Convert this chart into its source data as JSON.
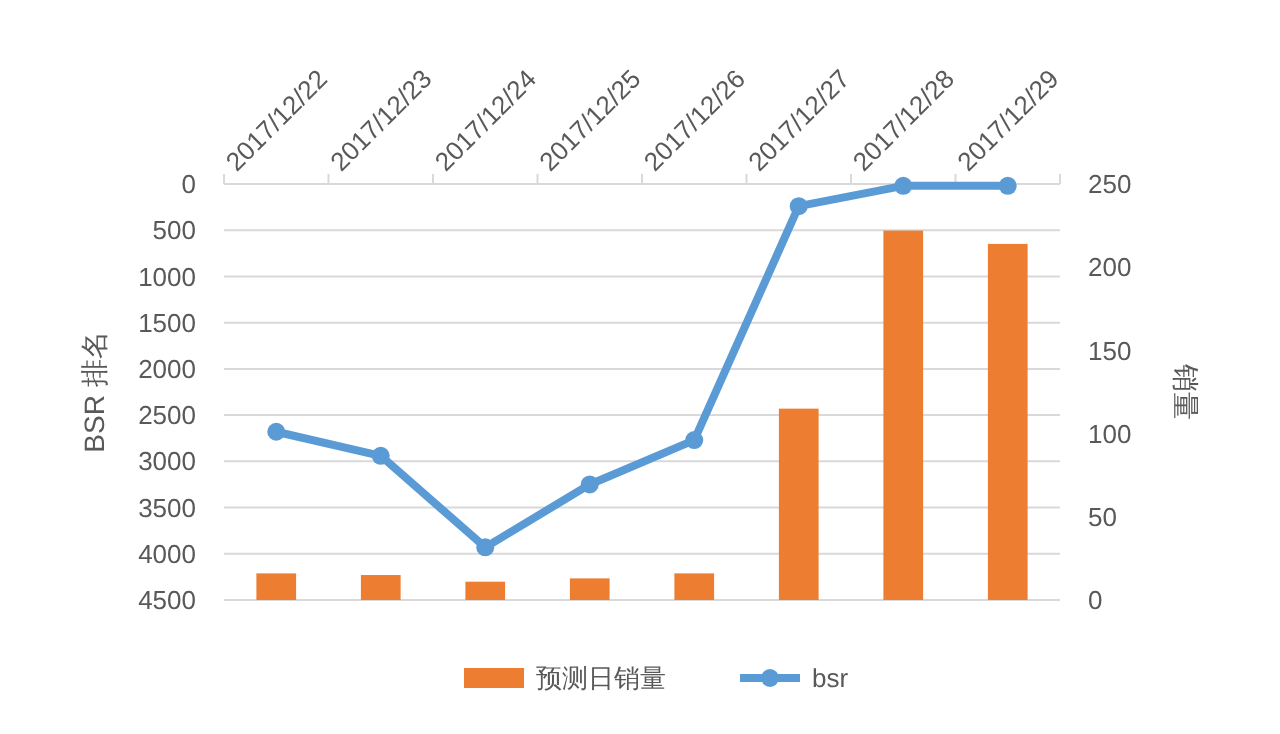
{
  "chart_data": {
    "type": "bar",
    "categories": [
      "2017/12/22",
      "2017/12/23",
      "2017/12/24",
      "2017/12/25",
      "2017/12/26",
      "2017/12/27",
      "2017/12/28",
      "2017/12/29"
    ],
    "series": [
      {
        "name": "预测日销量",
        "axis": "y2",
        "color": "#ed7d31",
        "values": [
          16,
          15,
          11,
          13,
          16,
          115,
          222,
          214
        ]
      },
      {
        "name": "bsr",
        "type": "line",
        "axis": "y",
        "color": "#5b9bd5",
        "values": [
          2680,
          2940,
          3930,
          3250,
          2770,
          240,
          20,
          20
        ]
      }
    ],
    "ylabel": "BSR 排名",
    "y2label": "销量",
    "ylim": [
      4500,
      0
    ],
    "yticks": [
      0,
      500,
      1000,
      1500,
      2000,
      2500,
      3000,
      3500,
      4000,
      4500
    ],
    "y2lim": [
      0,
      250
    ],
    "y2ticks": [
      0,
      50,
      100,
      150,
      200,
      250
    ],
    "grid": "y",
    "legend": "bottom",
    "marker": "circle",
    "line_style": "solid"
  }
}
